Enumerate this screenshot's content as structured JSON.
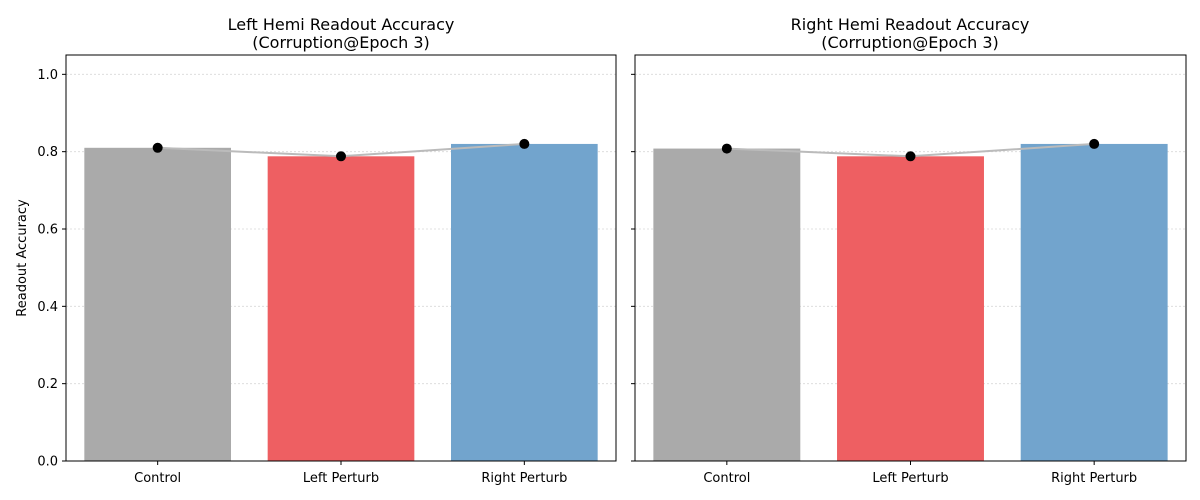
{
  "chart_data": [
    {
      "type": "bar",
      "title_line1": "Left Hemi Readout Accuracy",
      "title_line2": "(Corruption@Epoch 3)",
      "categories": [
        "Control",
        "Left Perturb",
        "Right Perturb"
      ],
      "values": [
        0.81,
        0.788,
        0.82
      ],
      "bar_colors": [
        "#aaaaaa",
        "#ee5f62",
        "#72a4cd"
      ],
      "ylabel": "Readout Accuracy",
      "ylim": [
        0,
        1.05
      ],
      "yticks": [
        "0.0",
        "0.2",
        "0.4",
        "0.6",
        "0.8",
        "1.0"
      ],
      "grid": "y-dotted",
      "overlay": {
        "type": "line-markers",
        "line_color": "#bbbbbb",
        "marker_color": "#000000"
      }
    },
    {
      "type": "bar",
      "title_line1": "Right Hemi Readout Accuracy",
      "title_line2": "(Corruption@Epoch 3)",
      "categories": [
        "Control",
        "Left Perturb",
        "Right Perturb"
      ],
      "values": [
        0.808,
        0.788,
        0.82
      ],
      "bar_colors": [
        "#aaaaaa",
        "#ee5f62",
        "#72a4cd"
      ],
      "ylabel": "",
      "ylim": [
        0,
        1.05
      ],
      "yticks": [
        "0.0",
        "0.2",
        "0.4",
        "0.6",
        "0.8",
        "1.0"
      ],
      "grid": "y-dotted",
      "overlay": {
        "type": "line-markers",
        "line_color": "#bbbbbb",
        "marker_color": "#000000"
      }
    }
  ]
}
